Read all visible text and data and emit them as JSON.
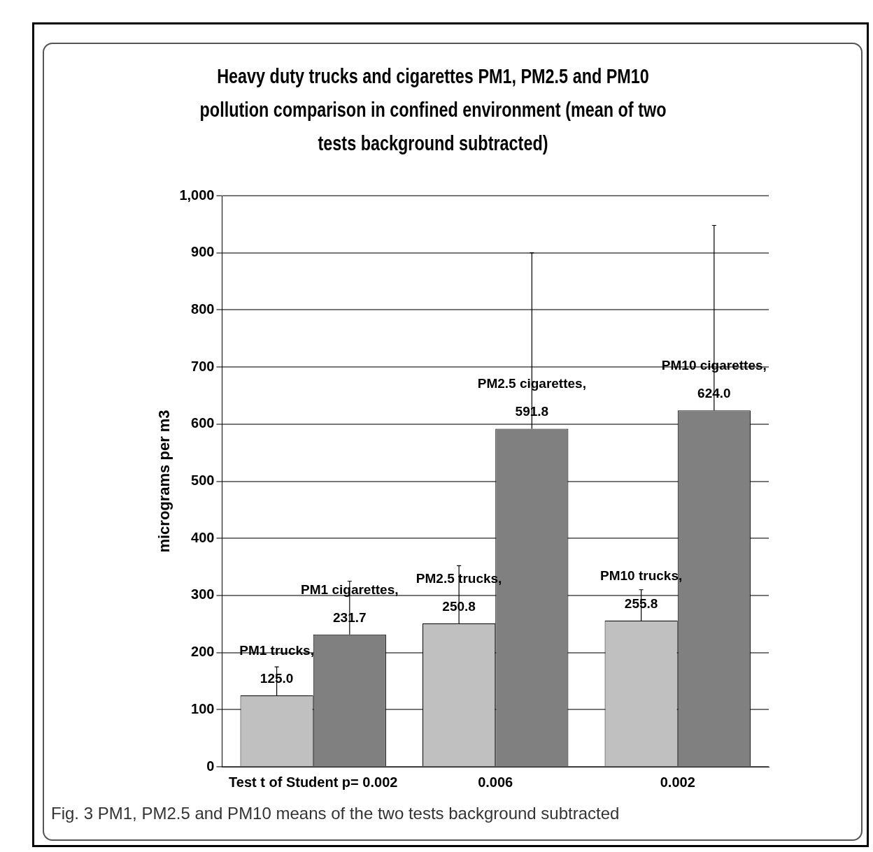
{
  "chart_data": {
    "type": "bar",
    "title": "Heavy duty trucks and cigarettes PM1, PM2.5 and PM10 pollution comparison in confined environment (mean of two tests background subtracted)",
    "ylabel": "micrograms per m3",
    "categories": [
      "Test t of Student p= 0.002",
      "0.006",
      "0.002"
    ],
    "series": [
      {
        "color": "#c0c0c0",
        "values": [
          125.0,
          250.8,
          255.8
        ],
        "value_labels": [
          "PM1 trucks, 125.0",
          "PM2.5 trucks, 250.8",
          "PM10 trucks, 255.8"
        ],
        "errors": [
          [
            125.0,
            175
          ],
          [
            250.8,
            352
          ],
          [
            255.8,
            310
          ]
        ]
      },
      {
        "color": "#808080",
        "values": [
          231.7,
          591.8,
          624.0
        ],
        "value_labels": [
          "PM1 cigarettes, 231.7",
          "PM2.5 cigarettes, 591.8",
          "PM10 cigarettes, 624.0"
        ],
        "errors": [
          [
            231.7,
            325
          ],
          [
            591.8,
            900
          ],
          [
            624.0,
            948
          ]
        ]
      }
    ],
    "ylim": [
      0,
      1000
    ],
    "yticks": [
      0,
      100,
      200,
      300,
      400,
      500,
      600,
      700,
      800,
      900,
      {
        "value": 1000,
        "label": "1,000"
      }
    ],
    "grid": "y",
    "legend": false,
    "annotations": [
      "Fig. 3 PM1, PM2.5 and PM10 means of the two tests background subtracted"
    ]
  }
}
